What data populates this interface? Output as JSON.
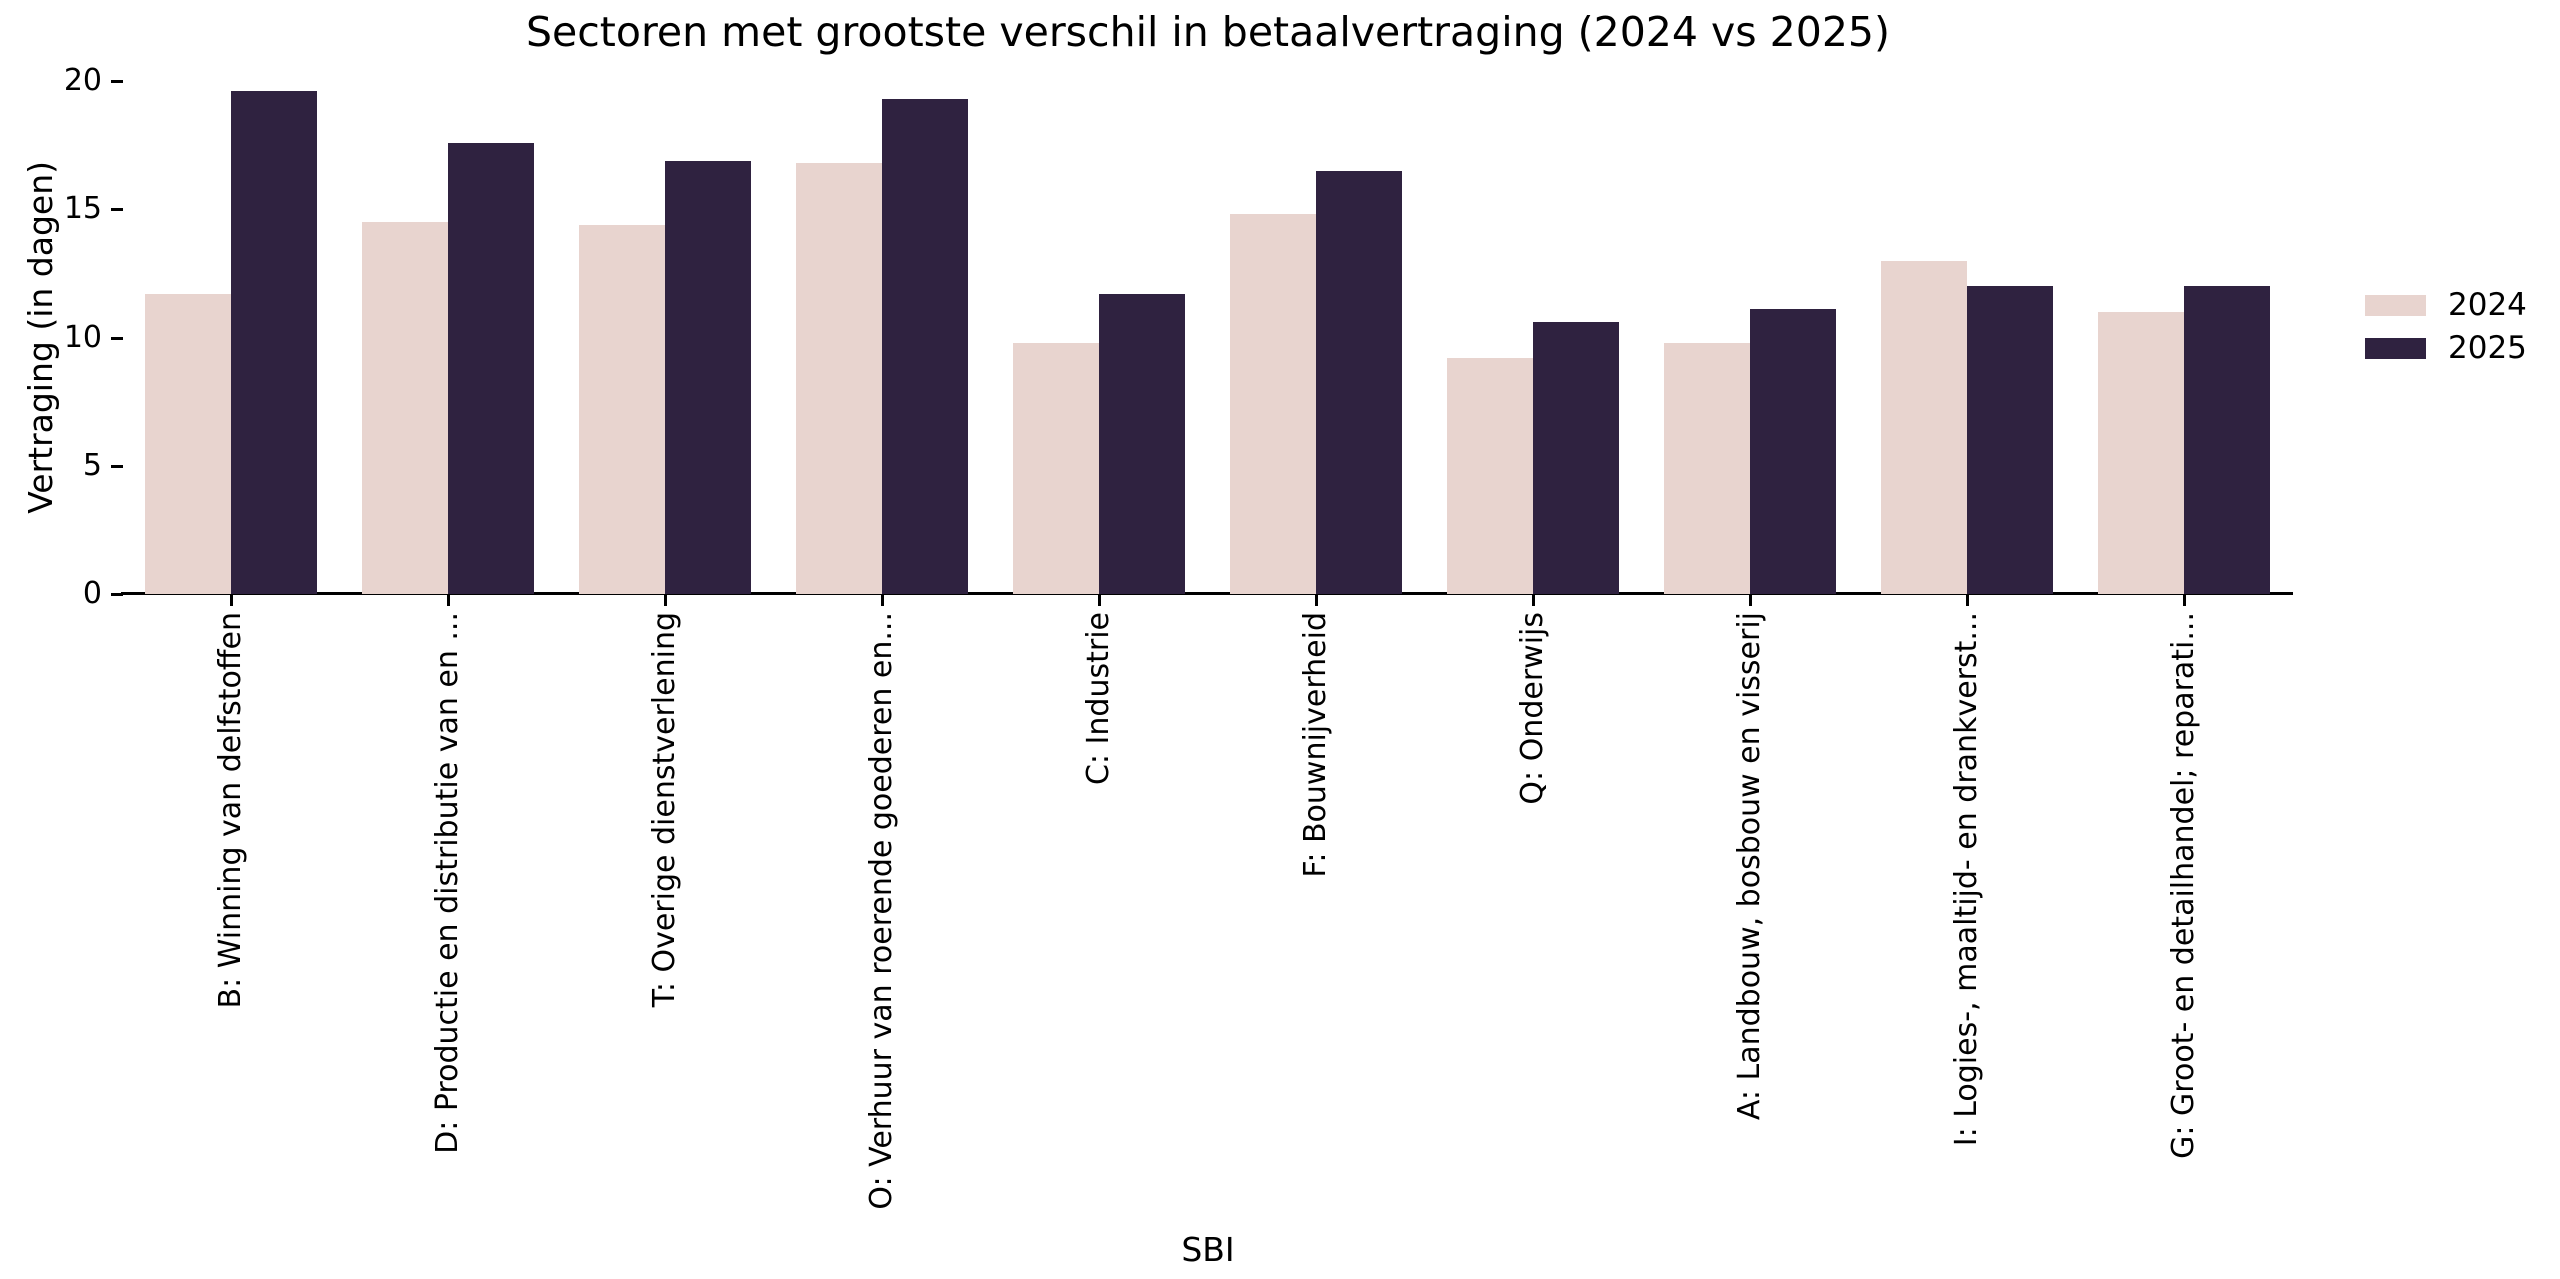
{
  "title": "Sectoren met grootste verschil in betaalvertraging (2024 vs 2025)",
  "y_axis": {
    "label": "Vertraging (in dagen)"
  },
  "x_axis": {
    "label": "SBI"
  },
  "legend": {
    "entries": [
      "2024",
      "2025"
    ]
  },
  "colors": {
    "series_2024": "#e8d4cf",
    "series_2025": "#2f2240",
    "axis": "#000000",
    "background": "#ffffff"
  },
  "chart_data": {
    "type": "bar",
    "title": "Sectoren met grootste verschil in betaalvertraging (2024 vs 2025)",
    "xlabel": "SBI",
    "ylabel": "Vertraging (in dagen)",
    "ylim": [
      0,
      20
    ],
    "yticks": [
      0,
      5,
      10,
      15,
      20
    ],
    "grid": false,
    "legend_position": "right",
    "categories": [
      "B: Winning van delfstoffen",
      "D: Productie en distributie van en ...",
      "T: Overige dienstverlening",
      "O: Verhuur van roerende goederen en...",
      "C: Industrie",
      "F: Bouwnijverheid",
      "Q: Onderwijs",
      "A: Landbouw, bosbouw en visserij",
      "I: Logies-, maaltijd- en drankverst...",
      "G: Groot- en detailhandel; reparati..."
    ],
    "series": [
      {
        "name": "2024",
        "color": "#e8d4cf",
        "values": [
          11.7,
          14.5,
          14.4,
          16.8,
          9.8,
          14.8,
          9.2,
          9.8,
          13.0,
          11.0
        ]
      },
      {
        "name": "2025",
        "color": "#2f2240",
        "values": [
          19.6,
          17.6,
          16.9,
          19.3,
          11.7,
          16.5,
          10.6,
          11.1,
          12.0,
          12.0
        ]
      }
    ]
  }
}
